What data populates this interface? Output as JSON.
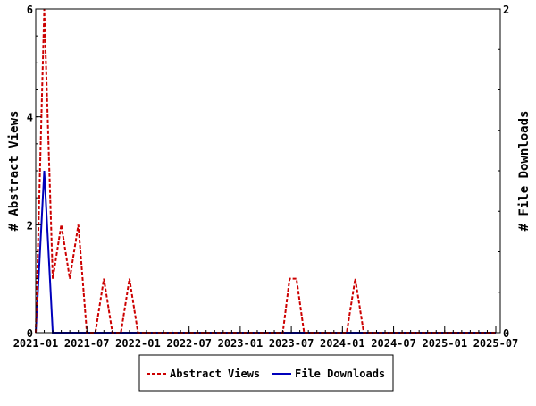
{
  "chart_data": {
    "type": "line",
    "xlabel": "",
    "ylabel_left": "# Abstract Views",
    "ylabel_right": "# File Downloads",
    "x_unit": "months since 2021-01",
    "xlim": [
      0,
      54
    ],
    "ylim_left": [
      0,
      6
    ],
    "ylim_right": [
      0,
      2
    ],
    "x_ticks": [
      {
        "x": 0,
        "label": "2021-01"
      },
      {
        "x": 6,
        "label": "2021-07"
      },
      {
        "x": 12,
        "label": "2022-01"
      },
      {
        "x": 18,
        "label": "2022-07"
      },
      {
        "x": 24,
        "label": "2023-01"
      },
      {
        "x": 30,
        "label": "2023-07"
      },
      {
        "x": 36,
        "label": "2024-01"
      },
      {
        "x": 42,
        "label": "2024-07"
      },
      {
        "x": 48,
        "label": "2025-01"
      },
      {
        "x": 54,
        "label": "2025-07"
      }
    ],
    "y_ticks_left": [
      "0",
      "2",
      "4",
      "6"
    ],
    "y_ticks_right": [
      "0",
      "2"
    ],
    "legend_position": "bottom",
    "series": [
      {
        "name": "Abstract Views",
        "axis": "left",
        "color": "#cc0000",
        "style": "dashed",
        "x": [
          0,
          1,
          2,
          3,
          4,
          5,
          6,
          7,
          8,
          9,
          10,
          11,
          12,
          29,
          29.8,
          30.6,
          31.5,
          36.5,
          37.5,
          38.5,
          54
        ],
        "y": [
          0,
          6,
          1,
          2,
          1,
          2,
          0,
          0,
          1,
          0,
          0,
          1,
          0,
          0,
          1,
          1,
          0,
          0,
          1,
          0,
          0
        ]
      },
      {
        "name": "File Downloads",
        "axis": "right",
        "color": "#0000bb",
        "style": "solid",
        "x": [
          0,
          1,
          2,
          54
        ],
        "y": [
          0,
          1,
          0,
          0
        ]
      }
    ]
  }
}
